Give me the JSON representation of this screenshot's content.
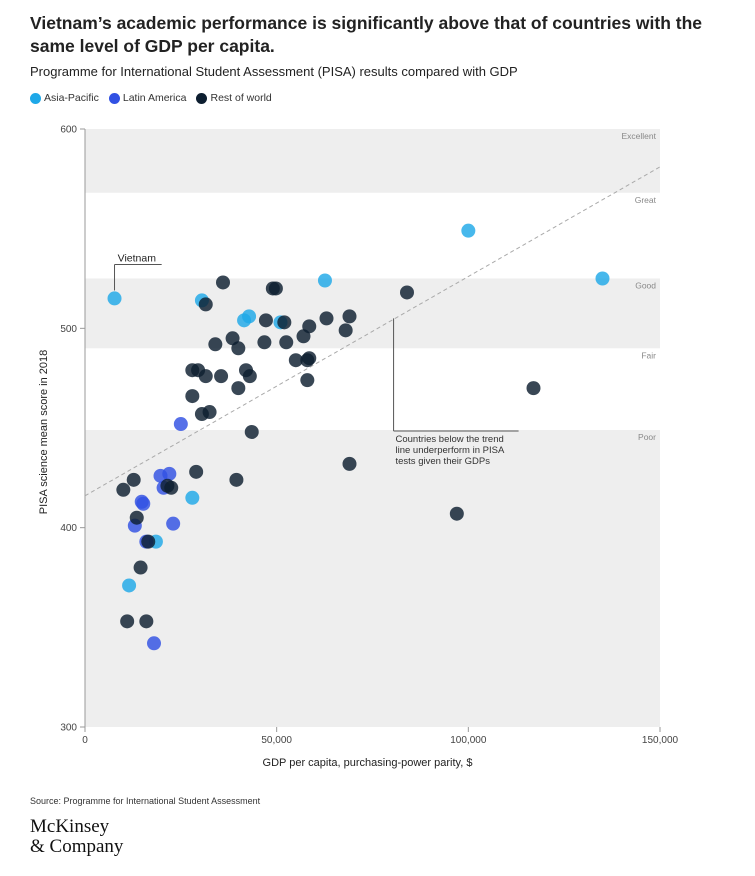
{
  "header": {
    "title": "Vietnam’s academic performance is significantly above that of countries with the same level of GDP per capita.",
    "subtitle": "Programme for International Student Assessment (PISA) results compared with GDP"
  },
  "legend": [
    {
      "label": "Asia-Pacific",
      "color": "#1ea8e8"
    },
    {
      "label": "Latin America",
      "color": "#3151e3"
    },
    {
      "label": "Rest of world",
      "color": "#0d1e30"
    }
  ],
  "colors": {
    "band": "#eeeeee",
    "trend": "#aaaaaa"
  },
  "footer": {
    "source": "Source: Programme for International Student Assessment",
    "logo_line1": "McKinsey",
    "logo_line2": "& Company"
  },
  "chart_data": {
    "type": "scatter",
    "xlabel": "GDP per capita, purchasing-power parity, $",
    "ylabel": "PISA science mean score in 2018",
    "xlim": [
      0,
      150000
    ],
    "ylim": [
      300,
      600
    ],
    "xticks": [
      {
        "value": 0,
        "label": "0"
      },
      {
        "value": 50000,
        "label": "50,000"
      },
      {
        "value": 100000,
        "label": "100,000"
      },
      {
        "value": 150000,
        "label": "150,000"
      }
    ],
    "yticks": [
      {
        "value": 300,
        "label": "300"
      },
      {
        "value": 400,
        "label": "400"
      },
      {
        "value": 500,
        "label": "500"
      },
      {
        "value": 600,
        "label": "600"
      }
    ],
    "bands": [
      {
        "label": "Excellent",
        "from": 568,
        "to": 600
      },
      {
        "label": "Great",
        "from": 525,
        "to": 568
      },
      {
        "label": "Good",
        "from": 490,
        "to": 525
      },
      {
        "label": "Fair",
        "from": 449,
        "to": 490
      },
      {
        "label": "Poor",
        "from": 300,
        "to": 449
      }
    ],
    "trendline": {
      "x": [
        0,
        150000
      ],
      "y": [
        416,
        581
      ]
    },
    "annotations": [
      {
        "text": "Vietnam",
        "x": 7700,
        "y": 515,
        "label_x": 8000,
        "label_y": 534
      },
      {
        "text": "Countries below the trend line underperform in PISA tests given their GDPs",
        "lines": [
          "Countries below the trend",
          "line underperform in PISA",
          "tests given their GDPs"
        ],
        "x": 80500,
        "y": 505,
        "label_x": 81000,
        "label_y": 447
      }
    ],
    "series": [
      {
        "name": "Asia-Pacific",
        "color": "#1ea8e8",
        "points": [
          [
            7700,
            515
          ],
          [
            30500,
            514
          ],
          [
            41500,
            504
          ],
          [
            42800,
            506
          ],
          [
            51000,
            503
          ],
          [
            62600,
            524
          ],
          [
            100000,
            549
          ],
          [
            135000,
            525
          ],
          [
            28000,
            415
          ],
          [
            18500,
            393
          ],
          [
            11500,
            371
          ]
        ]
      },
      {
        "name": "Latin America",
        "color": "#3151e3",
        "points": [
          [
            25000,
            452
          ],
          [
            19700,
            426
          ],
          [
            22000,
            427
          ],
          [
            20500,
            420
          ],
          [
            14800,
            413
          ],
          [
            15200,
            412
          ],
          [
            13000,
            401
          ],
          [
            23000,
            402
          ],
          [
            18000,
            342
          ],
          [
            16000,
            393
          ]
        ]
      },
      {
        "name": "Rest of world",
        "color": "#0d1e30",
        "points": [
          [
            36000,
            523
          ],
          [
            49000,
            520
          ],
          [
            49800,
            520
          ],
          [
            31500,
            512
          ],
          [
            84000,
            518
          ],
          [
            47200,
            504
          ],
          [
            52000,
            503
          ],
          [
            63000,
            505
          ],
          [
            69000,
            506
          ],
          [
            68000,
            499
          ],
          [
            57000,
            496
          ],
          [
            58500,
            501
          ],
          [
            34000,
            492
          ],
          [
            38500,
            495
          ],
          [
            46800,
            493
          ],
          [
            52500,
            493
          ],
          [
            40000,
            490
          ],
          [
            55000,
            484
          ],
          [
            58000,
            484
          ],
          [
            58500,
            485
          ],
          [
            28000,
            479
          ],
          [
            29500,
            479
          ],
          [
            42000,
            479
          ],
          [
            43000,
            476
          ],
          [
            35500,
            476
          ],
          [
            31500,
            476
          ],
          [
            40000,
            470
          ],
          [
            58000,
            474
          ],
          [
            117000,
            470
          ],
          [
            28000,
            466
          ],
          [
            30500,
            457
          ],
          [
            32500,
            458
          ],
          [
            43500,
            448
          ],
          [
            69000,
            432
          ],
          [
            29000,
            428
          ],
          [
            39500,
            424
          ],
          [
            12700,
            424
          ],
          [
            10000,
            419
          ],
          [
            21500,
            421
          ],
          [
            22500,
            420
          ],
          [
            97000,
            407
          ],
          [
            13500,
            405
          ],
          [
            16500,
            393
          ],
          [
            14500,
            380
          ],
          [
            11000,
            353
          ],
          [
            16000,
            353
          ]
        ]
      }
    ]
  }
}
